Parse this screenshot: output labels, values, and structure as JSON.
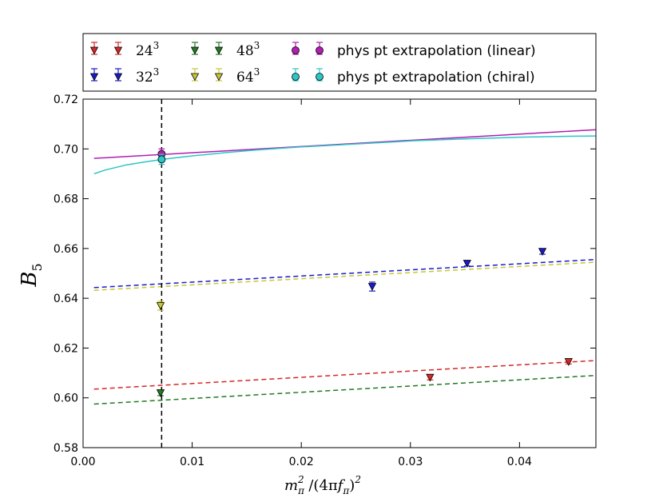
{
  "chart_data": {
    "type": "scatter",
    "title": "",
    "xlabel": "m_π² /(4πf_π)²",
    "ylabel": "B_5",
    "xlim": [
      0.0,
      0.047
    ],
    "ylim": [
      0.58,
      0.72
    ],
    "xticks": [
      0.0,
      0.01,
      0.02,
      0.03,
      0.04
    ],
    "xtick_labels": [
      "0.00",
      "0.01",
      "0.02",
      "0.03",
      "0.04"
    ],
    "yticks": [
      0.58,
      0.6,
      0.62,
      0.64,
      0.66,
      0.68,
      0.7,
      0.72
    ],
    "ytick_labels": [
      "0.58",
      "0.60",
      "0.62",
      "0.64",
      "0.66",
      "0.68",
      "0.70",
      "0.72"
    ],
    "grid": false,
    "legend_position": "top",
    "vline_x": 0.0072,
    "series": [
      {
        "name": "24^3",
        "label_base": "24",
        "label_exp": "3",
        "color": "#d62728",
        "marker": "triangle-down",
        "points": [
          {
            "x": 0.0318,
            "y": 0.6082,
            "err": 0.001
          },
          {
            "x": 0.0445,
            "y": 0.6145,
            "err": 0.0009
          }
        ]
      },
      {
        "name": "32^3",
        "label_base": "32",
        "label_exp": "3",
        "color": "#1a1acc",
        "marker": "triangle-down",
        "points": [
          {
            "x": 0.0265,
            "y": 0.6447,
            "err": 0.0018
          },
          {
            "x": 0.0352,
            "y": 0.654,
            "err": 0.001
          },
          {
            "x": 0.0421,
            "y": 0.6588,
            "err": 0.0011
          }
        ]
      },
      {
        "name": "48^3",
        "label_base": "48",
        "label_exp": "3",
        "color": "#237a23",
        "marker": "triangle-down",
        "points": [
          {
            "x": 0.0071,
            "y": 0.602,
            "err": 0.0011
          }
        ]
      },
      {
        "name": "64^3",
        "label_base": "64",
        "label_exp": "3",
        "color": "#c8c832",
        "marker": "triangle-down",
        "points": [
          {
            "x": 0.0071,
            "y": 0.637,
            "err": 0.0018
          }
        ]
      },
      {
        "name": "phys pt extrapolation (linear)",
        "color": "#b01fb0",
        "marker": "circle",
        "points": [
          {
            "x": 0.0072,
            "y": 0.698,
            "err": 0.002
          }
        ]
      },
      {
        "name": "phys pt extrapolation (chiral)",
        "color": "#2bc6c6",
        "marker": "circle",
        "points": [
          {
            "x": 0.0072,
            "y": 0.6958,
            "err": 0.002
          }
        ]
      }
    ],
    "fit_lines": [
      {
        "name": "linear fit (phys)",
        "color": "#b01fb0",
        "dashed": false,
        "x": [
          0.001,
          0.047
        ],
        "y": [
          0.6962,
          0.7077
        ]
      },
      {
        "name": "chiral fit (phys)",
        "color": "#2bc6c6",
        "dashed": false,
        "x": [
          0.001,
          0.002,
          0.004,
          0.006,
          0.008,
          0.01,
          0.013,
          0.016,
          0.02,
          0.025,
          0.03,
          0.035,
          0.04,
          0.045,
          0.047
        ],
        "y": [
          0.69,
          0.6915,
          0.6936,
          0.695,
          0.6962,
          0.6972,
          0.6985,
          0.6996,
          0.7008,
          0.702,
          0.7032,
          0.704,
          0.7047,
          0.7051,
          0.7052
        ]
      },
      {
        "name": "32^3 fit",
        "color": "#1a1acc",
        "dashed": true,
        "x": [
          0.001,
          0.047
        ],
        "y": [
          0.6443,
          0.6556
        ]
      },
      {
        "name": "64^3 fit",
        "color": "#c8c832",
        "dashed": true,
        "x": [
          0.001,
          0.047
        ],
        "y": [
          0.6432,
          0.6545
        ]
      },
      {
        "name": "24^3 fit",
        "color": "#d62728",
        "dashed": true,
        "x": [
          0.001,
          0.047
        ],
        "y": [
          0.6035,
          0.615
        ]
      },
      {
        "name": "48^3 fit",
        "color": "#237a23",
        "dashed": true,
        "x": [
          0.001,
          0.047
        ],
        "y": [
          0.5975,
          0.609
        ]
      }
    ]
  }
}
